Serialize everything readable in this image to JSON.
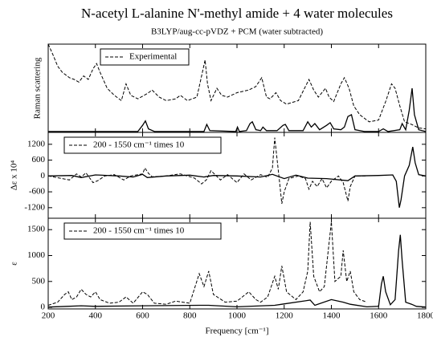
{
  "chart_data": [
    {
      "type": "line",
      "title": "N-acetyl L-alanine N'-methyl amide + 4 water molecules",
      "subtitle": "B3LYP/aug-cc-pVDZ + PCM (water subtracted)",
      "ylabel": "Raman scattering",
      "xlim": [
        200,
        1800
      ],
      "ylim": [
        0,
        100
      ],
      "series": [
        {
          "name": "Experimental",
          "color": "#000000",
          "dash": true,
          "x": [
            200,
            220,
            240,
            260,
            290,
            310,
            330,
            350,
            370,
            390,
            405,
            420,
            450,
            480,
            510,
            530,
            550,
            580,
            620,
            640,
            670,
            700,
            740,
            760,
            790,
            830,
            855,
            865,
            875,
            890,
            915,
            935,
            960,
            1000,
            1050,
            1080,
            1105,
            1125,
            1140,
            1165,
            1185,
            1210,
            1260,
            1290,
            1305,
            1325,
            1345,
            1375,
            1390,
            1410,
            1440,
            1455,
            1475,
            1495,
            1520,
            1560,
            1600,
            1630,
            1655,
            1670,
            1690,
            1710,
            1740,
            1770,
            1800
          ],
          "values": [
            100,
            88,
            75,
            68,
            62,
            60,
            57,
            64,
            60,
            72,
            78,
            68,
            50,
            42,
            36,
            55,
            42,
            38,
            44,
            48,
            40,
            36,
            38,
            42,
            36,
            40,
            70,
            82,
            55,
            36,
            50,
            42,
            40,
            45,
            48,
            52,
            62,
            40,
            38,
            45,
            36,
            32,
            36,
            52,
            60,
            48,
            40,
            50,
            40,
            35,
            55,
            62,
            50,
            30,
            20,
            12,
            14,
            35,
            55,
            50,
            30,
            12,
            9,
            5,
            4
          ]
        },
        {
          "color": "#000000",
          "dash": false,
          "x": [
            200,
            580,
            600,
            612,
            625,
            650,
            860,
            872,
            885,
            995,
            1002,
            1010,
            1040,
            1055,
            1065,
            1080,
            1100,
            1110,
            1125,
            1170,
            1195,
            1205,
            1220,
            1280,
            1300,
            1315,
            1330,
            1350,
            1380,
            1395,
            1410,
            1440,
            1455,
            1470,
            1485,
            1500,
            1540,
            1600,
            1620,
            1640,
            1690,
            1700,
            1715,
            1730,
            1742,
            1752,
            1770,
            1800
          ],
          "values": [
            1,
            1,
            8,
            13,
            4,
            1,
            1,
            9,
            2,
            1,
            6,
            1,
            2,
            10,
            12,
            3,
            2,
            6,
            2,
            2,
            8,
            9,
            2,
            2,
            12,
            6,
            10,
            3,
            8,
            11,
            4,
            3,
            6,
            18,
            20,
            3,
            1,
            1,
            4,
            1,
            3,
            10,
            3,
            25,
            50,
            20,
            3,
            1
          ]
        }
      ]
    },
    {
      "type": "line",
      "ylabel": "Δε x 10⁴",
      "xlim": [
        200,
        1800
      ],
      "ylim": [
        -1600,
        1650
      ],
      "yticks": [
        -1200,
        -600,
        0,
        600,
        1200
      ],
      "series": [
        {
          "name": "200 - 1550 cm⁻¹ times 10",
          "color": "#000000",
          "dash": true,
          "x": [
            200,
            260,
            290,
            320,
            340,
            360,
            390,
            410,
            440,
            480,
            520,
            550,
            600,
            610,
            625,
            640,
            700,
            760,
            820,
            850,
            870,
            890,
            930,
            960,
            1000,
            1030,
            1060,
            1100,
            1130,
            1150,
            1160,
            1168,
            1180,
            1190,
            1200,
            1220,
            1260,
            1290,
            1305,
            1320,
            1340,
            1360,
            1380,
            1400,
            1430,
            1450,
            1470,
            1480,
            1500,
            1550
          ],
          "values": [
            0,
            -100,
            -150,
            80,
            -40,
            120,
            -250,
            -180,
            0,
            50,
            -150,
            0,
            80,
            300,
            100,
            -30,
            0,
            80,
            -80,
            -300,
            -150,
            200,
            -150,
            50,
            -250,
            80,
            -150,
            50,
            -50,
            300,
            1450,
            800,
            -200,
            -1050,
            -600,
            -100,
            0,
            -100,
            -500,
            -200,
            -400,
            -100,
            -450,
            -200,
            0,
            -250,
            -950,
            -400,
            0,
            0
          ]
        },
        {
          "color": "#000000",
          "dash": false,
          "x": [
            200,
            300,
            340,
            400,
            500,
            560,
            600,
            620,
            700,
            800,
            860,
            900,
            1000,
            1100,
            1150,
            1200,
            1250,
            1300,
            1380,
            1470,
            1500,
            1600,
            1660,
            1675,
            1688,
            1695,
            1710,
            1730,
            1745,
            1755,
            1770,
            1800
          ],
          "values": [
            0,
            20,
            -60,
            40,
            0,
            -40,
            60,
            -60,
            0,
            30,
            -40,
            20,
            0,
            -40,
            60,
            -100,
            30,
            -80,
            -100,
            -180,
            0,
            20,
            40,
            -200,
            -1200,
            -900,
            0,
            400,
            1100,
            500,
            50,
            0
          ]
        }
      ]
    },
    {
      "type": "line",
      "ylabel": "ε",
      "xlabel": "Frequency [cm⁻¹]",
      "xlim": [
        200,
        1800
      ],
      "ylim": [
        -30,
        1720
      ],
      "xticks": [
        200,
        400,
        600,
        800,
        1000,
        1200,
        1400,
        1600,
        1800
      ],
      "yticks": [
        0,
        500,
        1000,
        1500
      ],
      "series": [
        {
          "name": "200 - 1550 cm⁻¹ times 10",
          "color": "#000000",
          "dash": true,
          "x": [
            200,
            240,
            270,
            285,
            300,
            320,
            340,
            360,
            380,
            400,
            420,
            460,
            500,
            530,
            560,
            600,
            620,
            650,
            700,
            740,
            770,
            800,
            840,
            860,
            880,
            900,
            950,
            1000,
            1050,
            1080,
            1100,
            1130,
            1160,
            1175,
            1190,
            1210,
            1250,
            1280,
            1300,
            1310,
            1325,
            1350,
            1370,
            1400,
            1415,
            1440,
            1450,
            1465,
            1480,
            1495,
            1520,
            1550
          ],
          "values": [
            40,
            100,
            250,
            300,
            150,
            200,
            350,
            250,
            200,
            300,
            150,
            80,
            100,
            200,
            80,
            300,
            250,
            80,
            60,
            120,
            100,
            80,
            650,
            400,
            700,
            250,
            100,
            120,
            300,
            150,
            100,
            200,
            600,
            350,
            800,
            300,
            150,
            300,
            700,
            1650,
            600,
            300,
            400,
            1650,
            500,
            600,
            1100,
            500,
            700,
            300,
            150,
            100
          ]
        },
        {
          "color": "#000000",
          "dash": false,
          "x": [
            200,
            280,
            340,
            400,
            600,
            840,
            880,
            1000,
            1160,
            1190,
            1310,
            1330,
            1400,
            1450,
            1480,
            1550,
            1600,
            1612,
            1620,
            1630,
            1650,
            1670,
            1685,
            1692,
            1700,
            1715,
            1740,
            1760,
            1800
          ],
          "values": [
            5,
            20,
            30,
            20,
            30,
            40,
            40,
            10,
            40,
            60,
            140,
            40,
            150,
            100,
            60,
            10,
            20,
            450,
            600,
            300,
            50,
            150,
            1100,
            1400,
            900,
            100,
            60,
            20,
            5
          ]
        }
      ]
    }
  ]
}
